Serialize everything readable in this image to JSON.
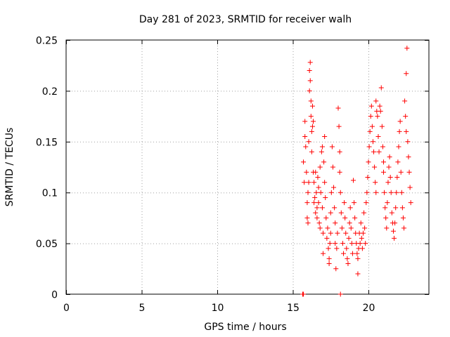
{
  "chart_data": {
    "type": "scatter",
    "title": "Day 281 of 2023, SRMTID for receiver walh",
    "xlabel": "GPS time / hours",
    "ylabel": "SRMTID / TECUs",
    "xlim": [
      0,
      24
    ],
    "ylim": [
      0,
      0.25
    ],
    "xticks": [
      0,
      5,
      10,
      15,
      20
    ],
    "yticks": [
      0,
      0.05,
      0.1,
      0.15,
      0.2,
      0.25
    ],
    "xtick_labels": [
      "0",
      "5",
      "10",
      "15",
      "20"
    ],
    "ytick_labels": [
      "0",
      "0.05",
      "0.1",
      "0.15",
      "0.2",
      "0.25"
    ],
    "grid": true,
    "marker": "+",
    "color": "#ff0000",
    "series": [
      {
        "name": "SRMTID",
        "points": [
          [
            15.65,
            0.0
          ],
          [
            15.7,
            0.0
          ],
          [
            18.15,
            0.0
          ],
          [
            15.7,
            0.13
          ],
          [
            15.75,
            0.11
          ],
          [
            15.8,
            0.155
          ],
          [
            15.8,
            0.17
          ],
          [
            15.85,
            0.145
          ],
          [
            15.9,
            0.12
          ],
          [
            15.95,
            0.09
          ],
          [
            15.95,
            0.075
          ],
          [
            16.0,
            0.1
          ],
          [
            16.0,
            0.07
          ],
          [
            16.05,
            0.11
          ],
          [
            16.05,
            0.15
          ],
          [
            16.1,
            0.2
          ],
          [
            16.1,
            0.22
          ],
          [
            16.15,
            0.228
          ],
          [
            16.15,
            0.21
          ],
          [
            16.2,
            0.19
          ],
          [
            16.2,
            0.175
          ],
          [
            16.25,
            0.16
          ],
          [
            16.25,
            0.14
          ],
          [
            16.3,
            0.185
          ],
          [
            16.3,
            0.165
          ],
          [
            16.35,
            0.17
          ],
          [
            16.35,
            0.12
          ],
          [
            16.4,
            0.11
          ],
          [
            16.4,
            0.09
          ],
          [
            16.45,
            0.095
          ],
          [
            16.5,
            0.08
          ],
          [
            16.5,
            0.12
          ],
          [
            16.55,
            0.1
          ],
          [
            16.6,
            0.085
          ],
          [
            16.6,
            0.075
          ],
          [
            16.65,
            0.115
          ],
          [
            16.7,
            0.105
          ],
          [
            16.7,
            0.09
          ],
          [
            16.75,
            0.07
          ],
          [
            16.8,
            0.125
          ],
          [
            16.8,
            0.065
          ],
          [
            16.85,
            0.1
          ],
          [
            16.9,
            0.14
          ],
          [
            16.95,
            0.145
          ],
          [
            16.95,
            0.085
          ],
          [
            17.0,
            0.06
          ],
          [
            17.0,
            0.04
          ],
          [
            17.05,
            0.13
          ],
          [
            17.1,
            0.155
          ],
          [
            17.1,
            0.11
          ],
          [
            17.15,
            0.095
          ],
          [
            17.2,
            0.075
          ],
          [
            17.25,
            0.055
          ],
          [
            17.3,
            0.065
          ],
          [
            17.35,
            0.045
          ],
          [
            17.4,
            0.035
          ],
          [
            17.4,
            0.03
          ],
          [
            17.45,
            0.05
          ],
          [
            17.5,
            0.06
          ],
          [
            17.5,
            0.08
          ],
          [
            17.55,
            0.1
          ],
          [
            17.6,
            0.145
          ],
          [
            17.65,
            0.125
          ],
          [
            17.7,
            0.105
          ],
          [
            17.75,
            0.085
          ],
          [
            17.8,
            0.07
          ],
          [
            17.8,
            0.05
          ],
          [
            17.85,
            0.025
          ],
          [
            17.9,
            0.045
          ],
          [
            17.95,
            0.06
          ],
          [
            18.0,
            0.183
          ],
          [
            18.05,
            0.165
          ],
          [
            18.1,
            0.14
          ],
          [
            18.1,
            0.12
          ],
          [
            18.15,
            0.1
          ],
          [
            18.2,
            0.08
          ],
          [
            18.25,
            0.065
          ],
          [
            18.3,
            0.05
          ],
          [
            18.35,
            0.04
          ],
          [
            18.4,
            0.09
          ],
          [
            18.45,
            0.075
          ],
          [
            18.5,
            0.06
          ],
          [
            18.55,
            0.045
          ],
          [
            18.6,
            0.035
          ],
          [
            18.65,
            0.03
          ],
          [
            18.7,
            0.055
          ],
          [
            18.75,
            0.07
          ],
          [
            18.8,
            0.085
          ],
          [
            18.85,
            0.065
          ],
          [
            18.9,
            0.05
          ],
          [
            18.95,
            0.04
          ],
          [
            19.0,
            0.112
          ],
          [
            19.05,
            0.09
          ],
          [
            19.1,
            0.075
          ],
          [
            19.15,
            0.06
          ],
          [
            19.2,
            0.05
          ],
          [
            19.25,
            0.04
          ],
          [
            19.3,
            0.035
          ],
          [
            19.3,
            0.02
          ],
          [
            19.35,
            0.045
          ],
          [
            19.4,
            0.06
          ],
          [
            19.45,
            0.05
          ],
          [
            19.5,
            0.07
          ],
          [
            19.55,
            0.055
          ],
          [
            19.6,
            0.045
          ],
          [
            19.65,
            0.06
          ],
          [
            19.7,
            0.08
          ],
          [
            19.75,
            0.065
          ],
          [
            19.8,
            0.05
          ],
          [
            19.85,
            0.09
          ],
          [
            19.9,
            0.1
          ],
          [
            19.95,
            0.115
          ],
          [
            20.0,
            0.13
          ],
          [
            20.05,
            0.145
          ],
          [
            20.1,
            0.16
          ],
          [
            20.15,
            0.175
          ],
          [
            20.2,
            0.185
          ],
          [
            20.25,
            0.165
          ],
          [
            20.3,
            0.15
          ],
          [
            20.35,
            0.14
          ],
          [
            20.4,
            0.125
          ],
          [
            20.45,
            0.11
          ],
          [
            20.5,
            0.1
          ],
          [
            20.5,
            0.19
          ],
          [
            20.55,
            0.18
          ],
          [
            20.6,
            0.175
          ],
          [
            20.65,
            0.155
          ],
          [
            20.7,
            0.14
          ],
          [
            20.75,
            0.185
          ],
          [
            20.8,
            0.18
          ],
          [
            20.85,
            0.203
          ],
          [
            20.9,
            0.165
          ],
          [
            20.95,
            0.145
          ],
          [
            21.0,
            0.13
          ],
          [
            21.0,
            0.12
          ],
          [
            21.05,
            0.1
          ],
          [
            21.1,
            0.085
          ],
          [
            21.15,
            0.075
          ],
          [
            21.2,
            0.065
          ],
          [
            21.25,
            0.09
          ],
          [
            21.3,
            0.11
          ],
          [
            21.35,
            0.125
          ],
          [
            21.4,
            0.135
          ],
          [
            21.45,
            0.115
          ],
          [
            21.5,
            0.1
          ],
          [
            21.55,
            0.08
          ],
          [
            21.6,
            0.07
          ],
          [
            21.65,
            0.062
          ],
          [
            21.7,
            0.055
          ],
          [
            21.75,
            0.07
          ],
          [
            21.8,
            0.085
          ],
          [
            21.85,
            0.1
          ],
          [
            21.9,
            0.115
          ],
          [
            21.95,
            0.13
          ],
          [
            22.0,
            0.145
          ],
          [
            22.05,
            0.16
          ],
          [
            22.1,
            0.17
          ],
          [
            22.15,
            0.12
          ],
          [
            22.2,
            0.1
          ],
          [
            22.25,
            0.085
          ],
          [
            22.3,
            0.075
          ],
          [
            22.35,
            0.065
          ],
          [
            22.4,
            0.19
          ],
          [
            22.45,
            0.175
          ],
          [
            22.5,
            0.16
          ],
          [
            22.5,
            0.217
          ],
          [
            22.55,
            0.242
          ],
          [
            22.6,
            0.15
          ],
          [
            22.65,
            0.135
          ],
          [
            22.7,
            0.12
          ],
          [
            22.75,
            0.105
          ],
          [
            22.8,
            0.09
          ]
        ]
      }
    ]
  }
}
